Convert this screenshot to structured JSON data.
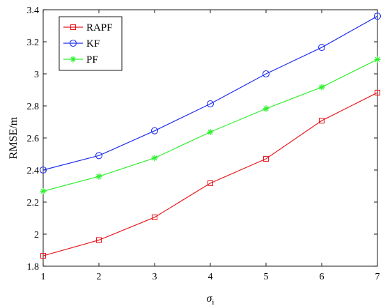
{
  "chart_data": {
    "type": "line",
    "xlabel": "σi",
    "xlabel_symbol": "σ",
    "xlabel_subscript": "i",
    "ylabel": "RMSE/m",
    "x": [
      1,
      2,
      3,
      4,
      5,
      6,
      7
    ],
    "xlim": [
      1,
      7
    ],
    "ylim": [
      1.8,
      3.4
    ],
    "xticks": [
      "1",
      "2",
      "3",
      "4",
      "5",
      "6",
      "7"
    ],
    "yticks": [
      "1.8",
      "2",
      "2.2",
      "2.4",
      "2.6",
      "2.8",
      "3",
      "3.2",
      "3.4"
    ],
    "grid": false,
    "legend_position": "top-left",
    "series": [
      {
        "name": "RAPF",
        "color": "#e8191f",
        "marker": "square",
        "values": [
          1.865,
          1.963,
          2.105,
          2.318,
          2.47,
          2.708,
          2.883
        ]
      },
      {
        "name": "KF",
        "color": "#1f2ef0",
        "marker": "circle",
        "values": [
          2.4,
          2.49,
          2.645,
          2.813,
          3.0,
          3.165,
          3.36
        ]
      },
      {
        "name": "PF",
        "color": "#2cf02c",
        "marker": "asterisk",
        "values": [
          2.268,
          2.36,
          2.475,
          2.637,
          2.783,
          2.917,
          3.09
        ]
      }
    ]
  }
}
